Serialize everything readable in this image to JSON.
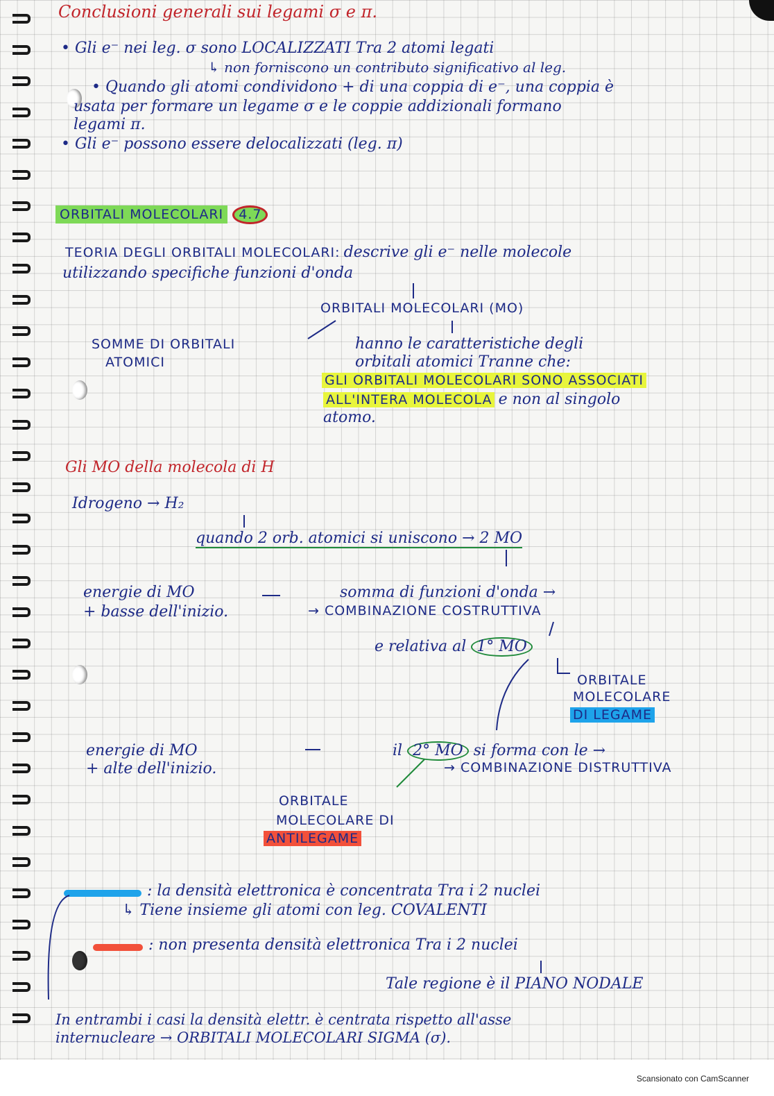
{
  "page": {
    "title": "Conclusioni generali sui legami σ e π.",
    "bullets": [
      "• Gli e⁻ nei leg. σ sono LOCALIZZATI Tra 2 atomi legati",
      "↳ non forniscono un contributo significativo al leg.",
      "• Quando gli atomi condividono + di una coppia di e⁻, una coppia è",
      "usata per formare un legame σ e le coppie addizionali formano",
      "legami π.",
      "• Gli e⁻ possono essere delocalizzati (leg. π)"
    ],
    "section_heading": "ORBITALI MOLECOLARI",
    "section_number": "4.7",
    "theory_line1_caps": "TEORIA DEGLI ORBITALI MOLECOLARI:",
    "theory_line1_rest": "descrive gli e⁻ nelle molecole",
    "theory_line2": "utilizzando specifiche funzioni d'onda",
    "om_label": "ORBITALI MOLECOLARI (MO)",
    "left_note_1": "SOMME DI ORBITALI",
    "left_note_2": "ATOMICI",
    "right_note_1": "hanno le caratteristiche degli",
    "right_note_2": "orbitali atomici Tranne che:",
    "yellow_1": "GLI ORBITALI MOLECOLARI SONO ASSOCIATI",
    "yellow_2": "ALL'INTERA MOLECOLA",
    "yellow_2_rest": "e non al singolo",
    "yellow_3": "atomo.",
    "h_heading": "Gli MO della molecola di H",
    "hydrogen": "Idrogeno → H₂",
    "when_line": "quando 2 orb. atomici si uniscono → 2 MO",
    "energy_low_1": "energie di MO",
    "energy_low_2": "+ basse dell'inizio.",
    "sum_line": "somma di funzioni d'onda →",
    "constructive": "→ COMBINAZIONE COSTRUTTIVA",
    "relative": "e relativa al",
    "first_mo": "1° MO",
    "bonding_1": "ORBITALE",
    "bonding_2": "MOLECOLARE",
    "bonding_3": "DI LEGAME",
    "energy_high_1": "energie di MO",
    "energy_high_2": "+ alte dell'inizio.",
    "second_line_a": "il",
    "second_mo": "2° MO",
    "second_line_b": "si forma con le →",
    "destructive": "→ COMBINAZIONE DISTRUTTIVA",
    "anti_1": "ORBITALE",
    "anti_2": "MOLECOLARE DI",
    "anti_3": "ANTILEGAME",
    "legend_blue": ": la densità elettronica è concentrata Tra i 2 nuclei",
    "legend_blue_2": "↳ Tiene insieme gli atomi con leg. COVALENTI",
    "legend_red": ": non presenta densità elettronica Tra i 2 nuclei",
    "nodal": "Tale regione è il PIANO NODALE",
    "bottom_1": "In entrambi i casi la densità elettr. è centrata rispetto all'asse",
    "bottom_2": "internucleare → ORBITALI MOLECOLARI SIGMA (σ).",
    "footer": "Scansionato con CamScanner"
  },
  "colors": {
    "ink_blue": "#1d2a86",
    "ink_red": "#c1242a",
    "highlight_green": "#7ed957",
    "highlight_yellow": "#e8f53c",
    "highlight_blue": "#1ea3ea",
    "highlight_red": "#f2503a"
  }
}
